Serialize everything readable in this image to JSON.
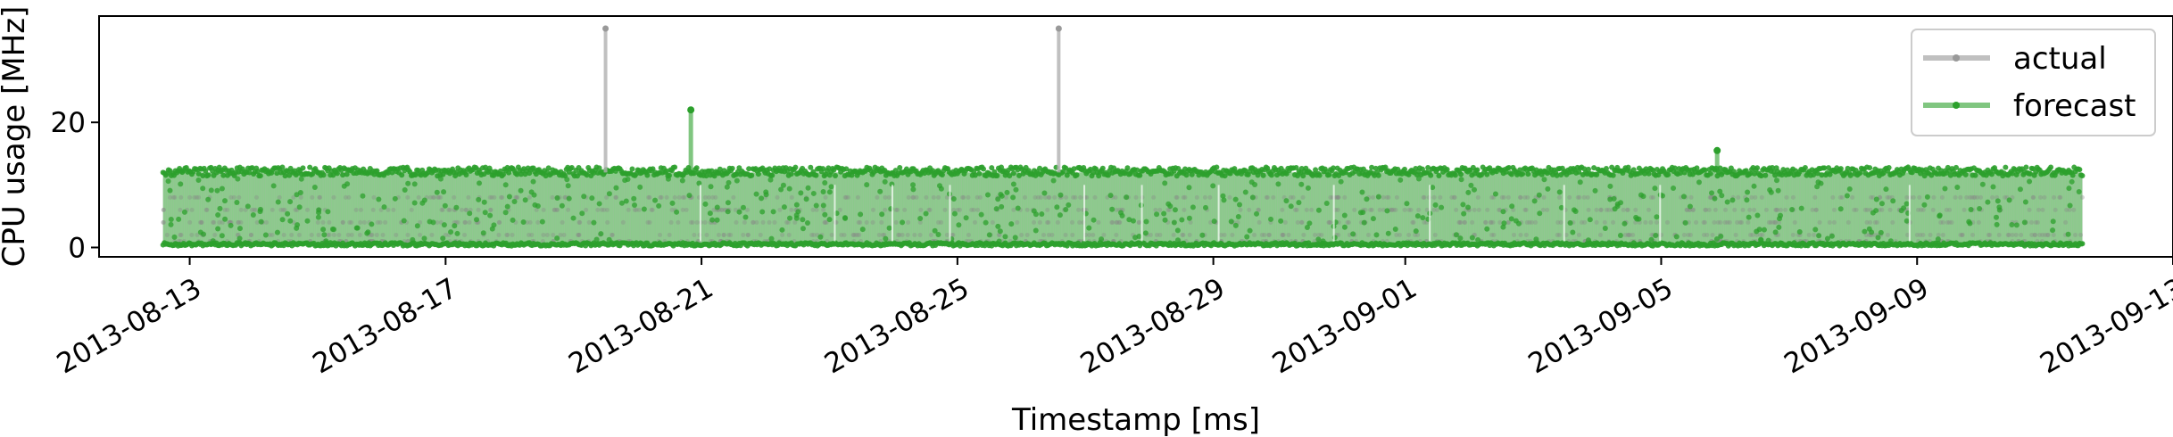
{
  "chart_data": {
    "type": "line",
    "xlabel": "Timestamp [ms]",
    "ylabel": "CPU usage [MHz]",
    "x_range": [
      "2013-08-11T14:00",
      "2013-09-13T00:00"
    ],
    "ylim": [
      -1.5,
      37
    ],
    "x_ticks": [
      "2013-08-13",
      "2013-08-17",
      "2013-08-21",
      "2013-08-25",
      "2013-08-29",
      "2013-09-01",
      "2013-09-05",
      "2013-09-09",
      "2013-09-13"
    ],
    "y_ticks": [
      0,
      20
    ],
    "grid": false,
    "legend_position": "top-right",
    "series": [
      {
        "name": "actual",
        "color": "#b0b0b0",
        "start": "2013-08-12T14:00",
        "end": "2013-09-11T14:00",
        "baseline_low": 0,
        "baseline_high": 12,
        "spikes": [
          {
            "date": "2013-08-19T12:00",
            "value": 35
          },
          {
            "date": "2013-08-26T14:00",
            "value": 35
          }
        ]
      },
      {
        "name": "forecast",
        "color": "#2ca02c",
        "start": "2013-08-12T14:00",
        "end": "2013-09-11T14:00",
        "baseline_low": 0.5,
        "baseline_high": 12,
        "spikes": [
          {
            "date": "2013-08-20T20:00",
            "value": 22
          },
          {
            "date": "2013-09-05T21:00",
            "value": 15.5
          }
        ]
      }
    ]
  }
}
